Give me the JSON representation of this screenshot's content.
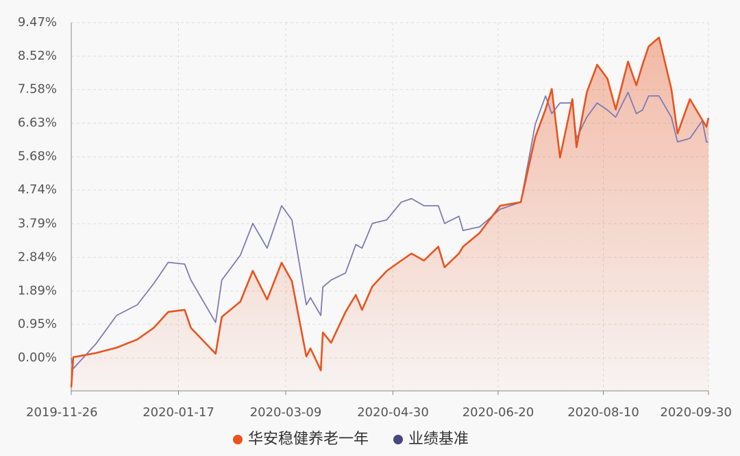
{
  "chart_data": {
    "type": "line",
    "x": [
      "2019-11-26",
      "2019-11-27",
      "2019-12-08",
      "2019-12-18",
      "2019-12-28",
      "2020-01-05",
      "2020-01-12",
      "2020-01-20",
      "2020-01-23",
      "2020-02-04",
      "2020-02-07",
      "2020-02-16",
      "2020-02-22",
      "2020-02-29",
      "2020-03-07",
      "2020-03-12",
      "2020-03-19",
      "2020-03-21",
      "2020-03-26",
      "2020-03-27",
      "2020-03-31",
      "2020-04-07",
      "2020-04-12",
      "2020-04-15",
      "2020-04-20",
      "2020-04-27",
      "2020-05-04",
      "2020-05-09",
      "2020-05-15",
      "2020-05-22",
      "2020-05-25",
      "2020-06-01",
      "2020-06-03",
      "2020-06-11",
      "2020-06-21",
      "2020-07-01",
      "2020-07-08",
      "2020-07-13",
      "2020-07-16",
      "2020-07-20",
      "2020-07-26",
      "2020-07-28",
      "2020-08-02",
      "2020-08-07",
      "2020-08-12",
      "2020-08-16",
      "2020-08-22",
      "2020-08-26",
      "2020-08-29",
      "2020-09-01",
      "2020-09-06",
      "2020-09-12",
      "2020-09-15",
      "2020-09-21",
      "2020-09-27",
      "2020-09-29",
      "2020-09-30"
    ],
    "series": [
      {
        "name": "华安稳健养老一年",
        "color": "#e8531e",
        "area": true,
        "values": [
          -0.83,
          0.02,
          0.14,
          0.29,
          0.52,
          0.85,
          1.3,
          1.36,
          0.85,
          0.12,
          1.16,
          1.59,
          2.46,
          1.65,
          2.69,
          2.17,
          0.04,
          0.27,
          -0.35,
          0.72,
          0.43,
          1.3,
          1.78,
          1.36,
          2.02,
          2.46,
          2.75,
          2.95,
          2.75,
          3.14,
          2.56,
          2.95,
          3.14,
          3.53,
          4.3,
          4.4,
          6.24,
          7.02,
          7.6,
          5.66,
          7.31,
          5.95,
          7.5,
          8.28,
          7.89,
          7.02,
          8.37,
          7.7,
          8.28,
          8.8,
          9.05,
          7.6,
          6.34,
          7.31,
          6.72,
          6.53,
          6.78
        ]
      },
      {
        "name": "业绩基准",
        "color": "#7e7ab5",
        "values": [
          0.0,
          -0.3,
          0.4,
          1.2,
          1.5,
          2.1,
          2.7,
          2.65,
          2.2,
          1.0,
          2.2,
          2.9,
          3.8,
          3.1,
          4.3,
          3.9,
          1.5,
          1.7,
          1.2,
          2.0,
          2.2,
          2.4,
          3.2,
          3.1,
          3.8,
          3.9,
          4.4,
          4.5,
          4.3,
          4.3,
          3.8,
          4.0,
          3.6,
          3.7,
          4.2,
          4.4,
          6.6,
          7.4,
          6.9,
          7.2,
          7.2,
          6.2,
          6.8,
          7.2,
          7.0,
          6.8,
          7.5,
          6.9,
          7.0,
          7.4,
          7.4,
          6.8,
          6.1,
          6.2,
          6.7,
          6.1,
          6.1
        ]
      }
    ],
    "xlim": [
      "2019-11-26",
      "2020-09-30"
    ],
    "xticks": [
      "2019-11-26",
      "2020-01-17",
      "2020-03-09",
      "2020-04-30",
      "2020-06-20",
      "2020-08-10",
      "2020-09-30"
    ],
    "ylim": [
      -0.93,
      9.47
    ],
    "yticks": [
      {
        "value": 0,
        "label": "0.00%"
      },
      {
        "value": 0.95,
        "label": "0.95%"
      },
      {
        "value": 1.89,
        "label": "1.89%"
      },
      {
        "value": 2.84,
        "label": "2.84%"
      },
      {
        "value": 3.79,
        "label": "3.79%"
      },
      {
        "value": 4.74,
        "label": "4.74%"
      },
      {
        "value": 5.68,
        "label": "5.68%"
      },
      {
        "value": 6.63,
        "label": "6.63%"
      },
      {
        "value": 7.58,
        "label": "7.58%"
      },
      {
        "value": 8.52,
        "label": "8.52%"
      },
      {
        "value": 9.47,
        "label": "9.47%"
      }
    ],
    "grid": true,
    "legend": "bottom"
  }
}
